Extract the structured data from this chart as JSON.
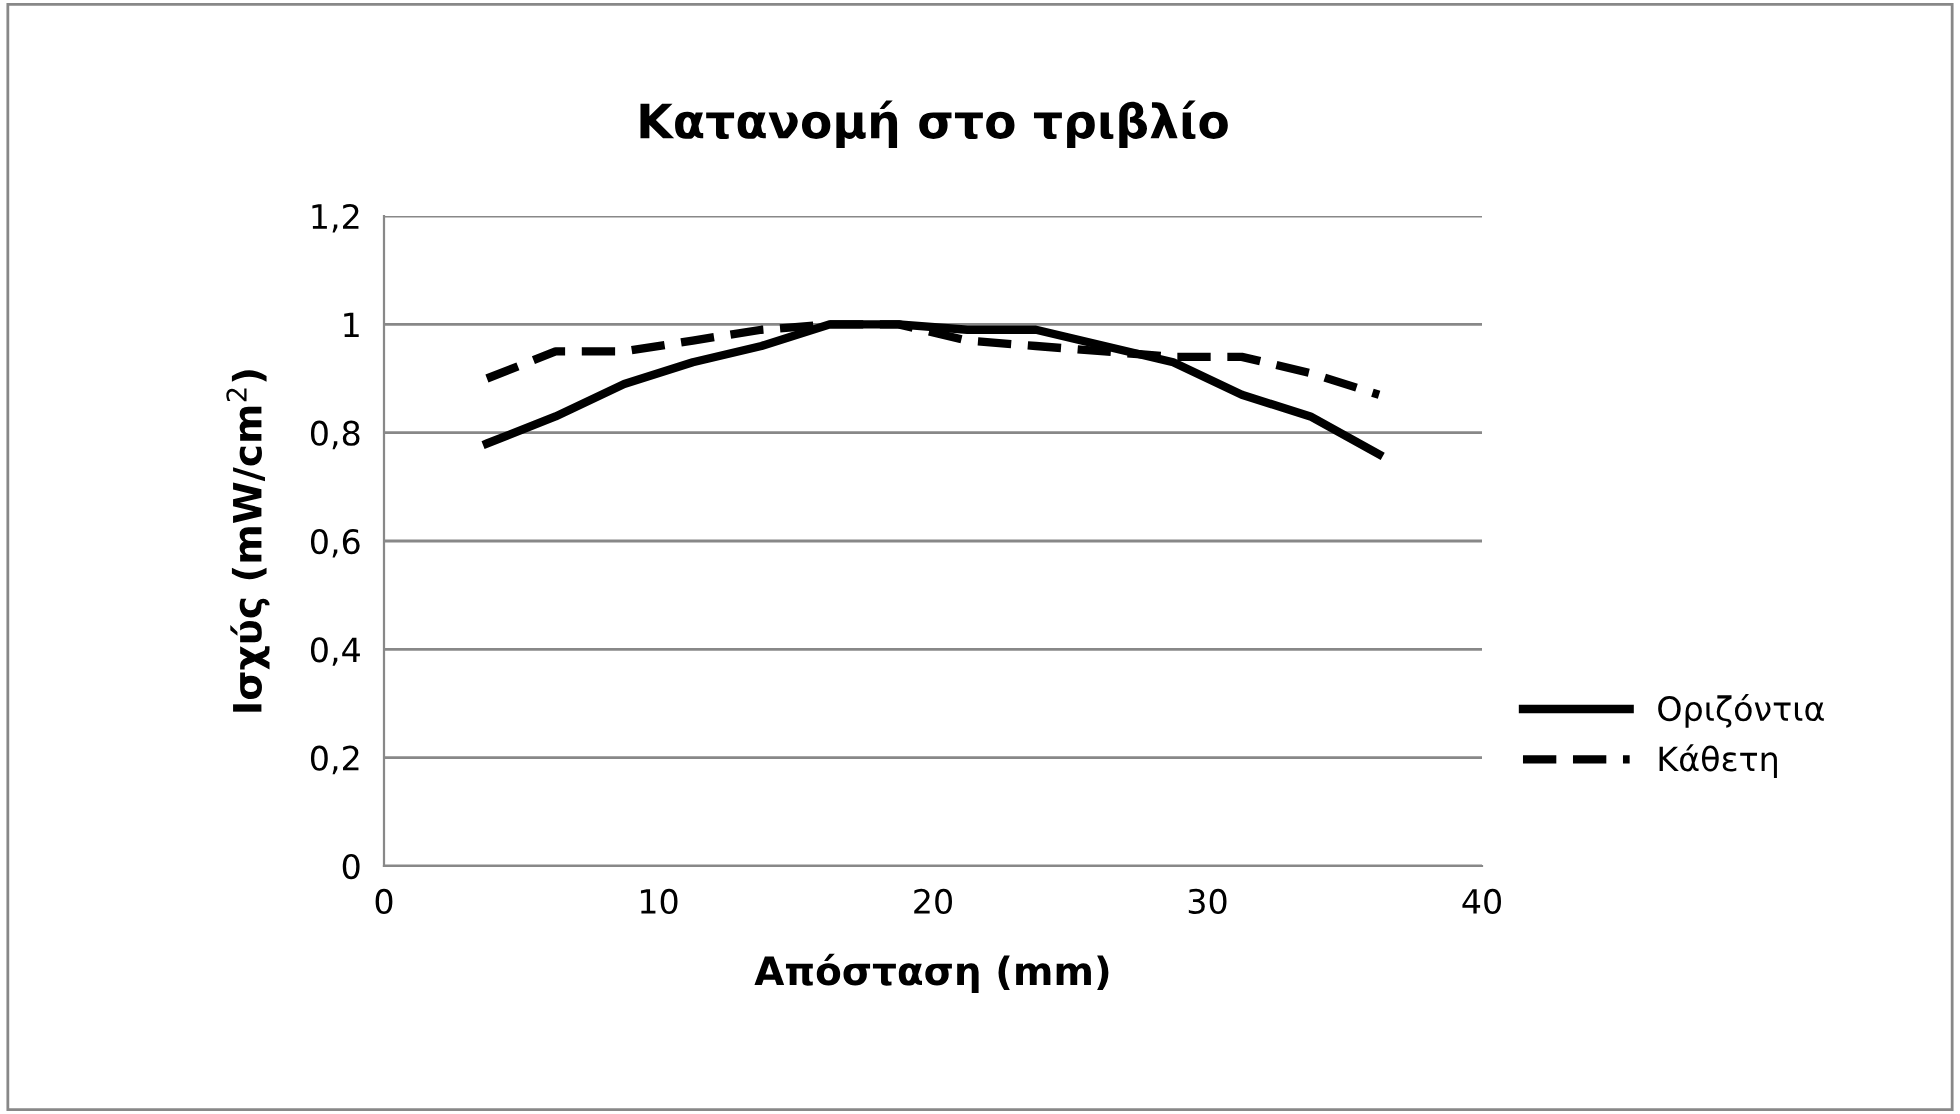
{
  "chart_data": {
    "type": "line",
    "title": "Κατανομή στο τριβλίο",
    "xlabel": "Απόσταση (mm)",
    "ylabel": "Ισχύς (mW/cm$^{2}$)",
    "x": [
      3.75,
      6.25,
      8.75,
      11.25,
      13.75,
      16.25,
      18.75,
      21.25,
      23.75,
      26.25,
      28.75,
      31.25,
      33.75,
      36.25
    ],
    "series": [
      {
        "name": "Οριζόντια",
        "color": "#000000",
        "line_style": "solid",
        "values": [
          0.78,
          0.83,
          0.89,
          0.93,
          0.96,
          1.0,
          1.0,
          0.99,
          0.99,
          0.96,
          0.93,
          0.87,
          0.83,
          0.76
        ]
      },
      {
        "name": "Κάθετη",
        "color": "#000000",
        "line_style": "dashed",
        "values": [
          0.9,
          0.95,
          0.95,
          0.97,
          0.99,
          1.0,
          1.0,
          0.97,
          0.96,
          0.95,
          0.94,
          0.94,
          0.91,
          0.87
        ]
      }
    ],
    "xlim": [
      0,
      40
    ],
    "xticks": [
      0,
      10,
      20,
      30,
      40
    ],
    "ylim": [
      0,
      1.2
    ],
    "yticks": [
      {
        "value": 0,
        "label": "0"
      },
      {
        "value": 0.2,
        "label": "0,2"
      },
      {
        "value": 0.4,
        "label": "0,4"
      },
      {
        "value": 0.6,
        "label": "0,6"
      },
      {
        "value": 0.8,
        "label": "0,8"
      },
      {
        "value": 1,
        "label": "1"
      },
      {
        "value": 1.2,
        "label": "1,2"
      }
    ],
    "grid": "y",
    "legend": "right",
    "marker": "none"
  }
}
